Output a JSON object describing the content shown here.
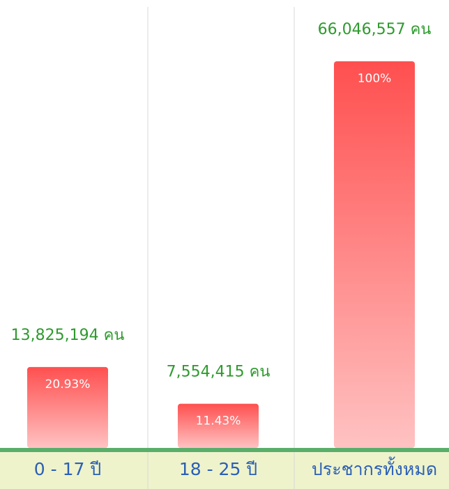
{
  "chart_data": {
    "type": "bar",
    "categories": [
      "0 - 17 ปี",
      "18 - 25 ปี",
      "ประชากรทั้งหมด"
    ],
    "values": [
      20.93,
      11.43,
      100
    ],
    "value_labels": [
      "20.93%",
      "11.43%",
      "100%"
    ],
    "annotations": [
      "13,825,194 คน",
      "7,554,415 คน",
      "66,046,557 คน"
    ],
    "color": "#ff4f4f"
  }
}
